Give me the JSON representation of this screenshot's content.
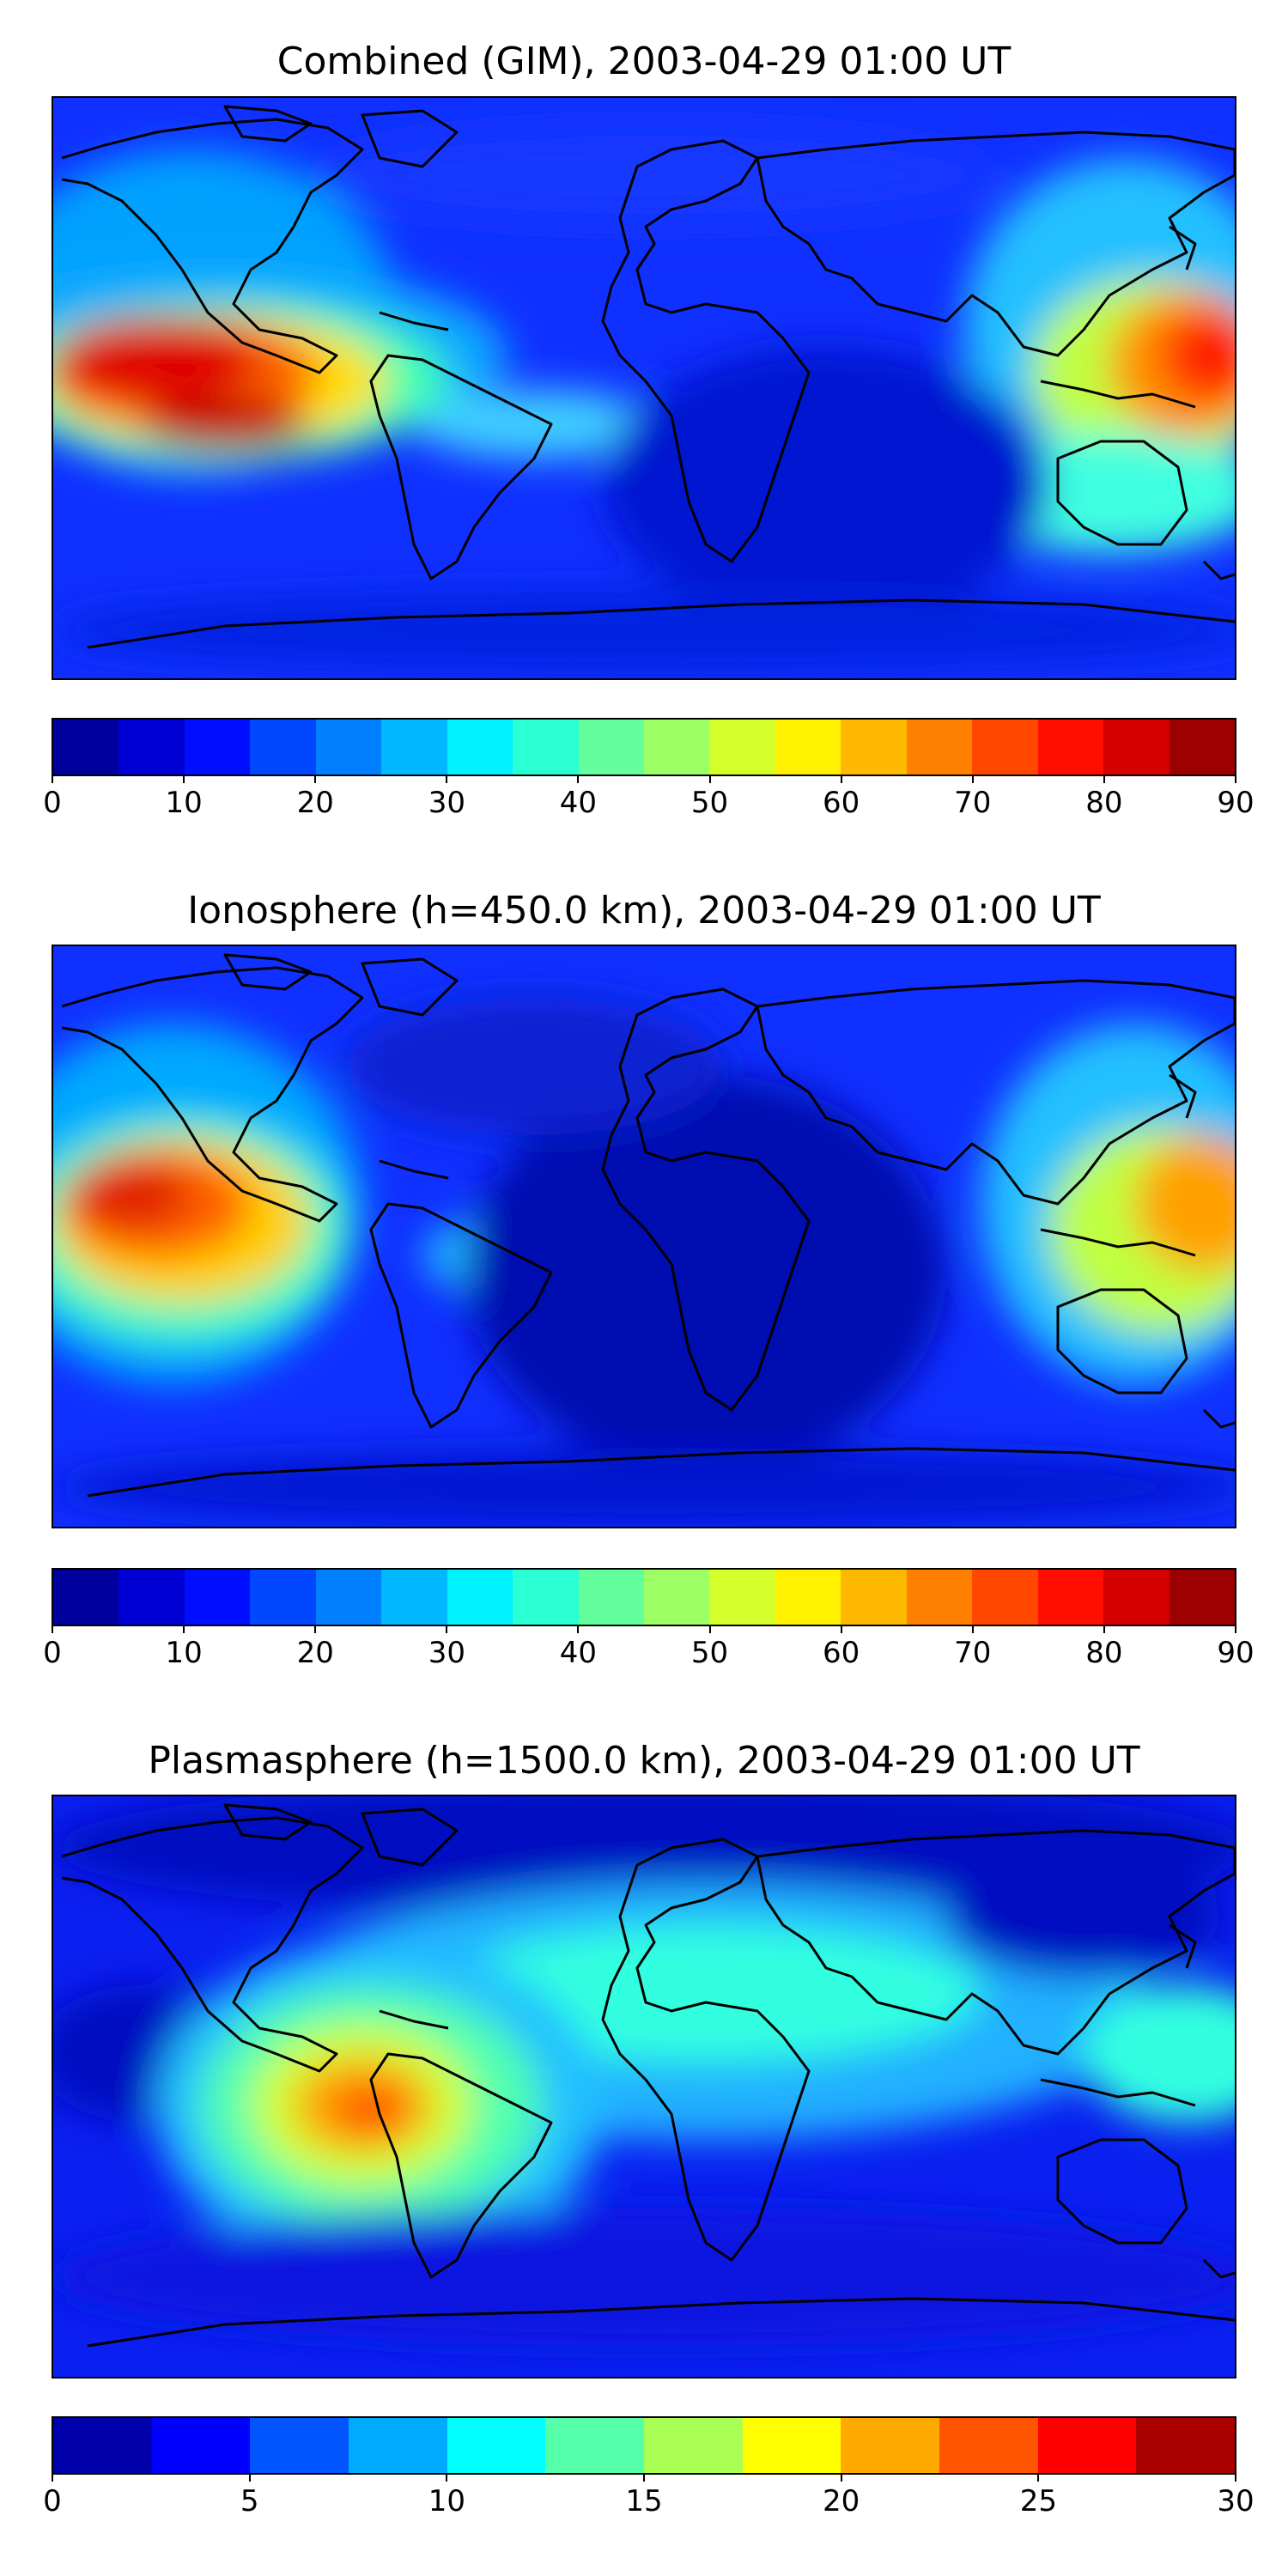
{
  "panels": [
    {
      "id": "combined",
      "title": "Combined (GIM), 2003-04-29 01:00 UT",
      "colorbar": {
        "vmin": 0,
        "vmax": 90,
        "levels": 18,
        "ticks": [
          "0",
          "10",
          "20",
          "30",
          "40",
          "50",
          "60",
          "70",
          "80",
          "90"
        ]
      }
    },
    {
      "id": "ionosphere",
      "title": "Ionosphere  (h=450.0 km), 2003-04-29 01:00 UT",
      "colorbar": {
        "vmin": 0,
        "vmax": 90,
        "levels": 18,
        "ticks": [
          "0",
          "10",
          "20",
          "30",
          "40",
          "50",
          "60",
          "70",
          "80",
          "90"
        ]
      }
    },
    {
      "id": "plasmasphere",
      "title": "Plasmasphere (h=1500.0 km), 2003-04-29 01:00 UT",
      "colorbar": {
        "vmin": 0,
        "vmax": 30,
        "levels": 12,
        "ticks": [
          "0",
          "5",
          "10",
          "15",
          "20",
          "25",
          "30"
        ]
      }
    }
  ],
  "colormap": "jet",
  "coastline_color": "#000000"
}
